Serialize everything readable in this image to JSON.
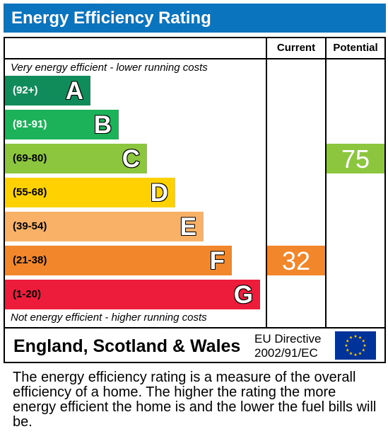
{
  "title": "Energy Efficiency Rating",
  "columns": {
    "current": "Current",
    "potential": "Potential"
  },
  "notes": {
    "top": "Very energy efficient - lower running costs",
    "bottom": "Not energy efficient - higher running costs"
  },
  "chart_data": {
    "type": "bar",
    "categories": [
      "A",
      "B",
      "C",
      "D",
      "E",
      "F",
      "G"
    ],
    "bands": [
      {
        "letter": "A",
        "range": "(92+)",
        "color": "#0f8c5a",
        "range_color": "#ffffff"
      },
      {
        "letter": "B",
        "range": "(81-91)",
        "color": "#1bb259",
        "range_color": "#ffffff"
      },
      {
        "letter": "C",
        "range": "(69-80)",
        "color": "#8cc63f",
        "range_color": "#000000"
      },
      {
        "letter": "D",
        "range": "(55-68)",
        "color": "#ffd100",
        "range_color": "#000000"
      },
      {
        "letter": "E",
        "range": "(39-54)",
        "color": "#f9b168",
        "range_color": "#000000"
      },
      {
        "letter": "F",
        "range": "(21-38)",
        "color": "#f2862a",
        "range_color": "#000000"
      },
      {
        "letter": "G",
        "range": "(1-20)",
        "color": "#ec1c3a",
        "range_color": "#000000"
      }
    ],
    "current": {
      "value": 32,
      "band": "F",
      "color": "#f2862a"
    },
    "potential": {
      "value": 75,
      "band": "C",
      "color": "#8cc63f"
    }
  },
  "footer": {
    "region": "England, Scotland & Wales",
    "directive_line1": "EU Directive",
    "directive_line2": "2002/91/EC"
  },
  "description": "The energy efficiency rating is a measure of the overall efficiency of a home. The higher the rating the more energy efficient the home is and the lower the fuel bills will be."
}
